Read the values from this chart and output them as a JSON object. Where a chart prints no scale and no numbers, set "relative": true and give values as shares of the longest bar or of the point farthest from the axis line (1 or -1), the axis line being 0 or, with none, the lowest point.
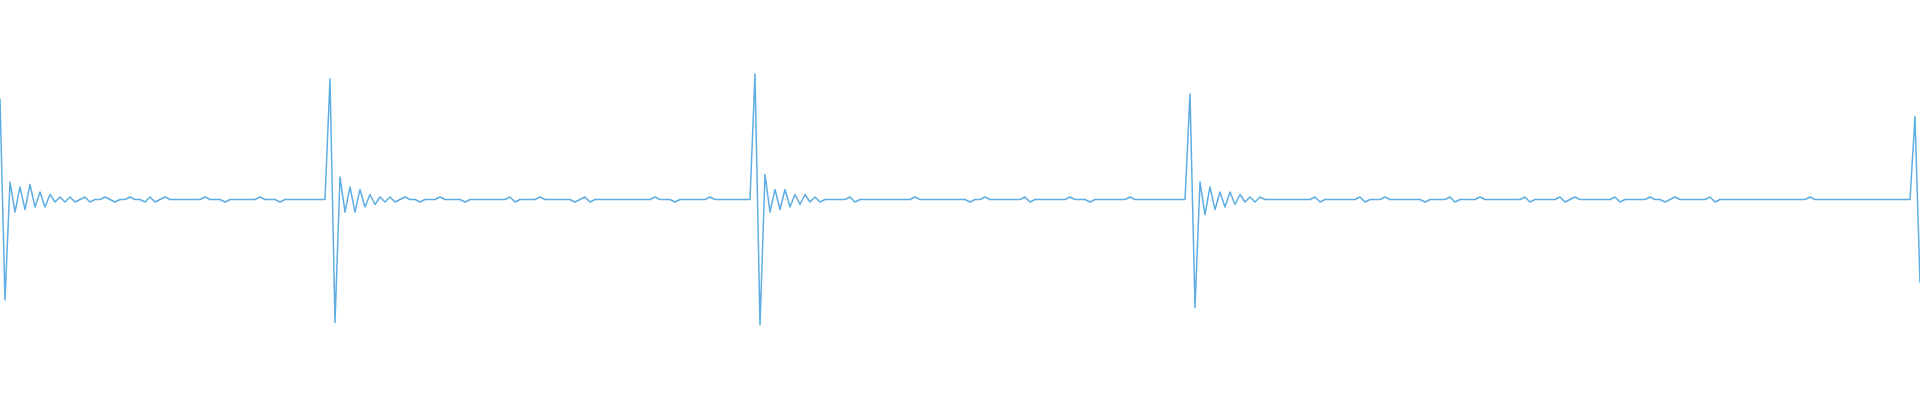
{
  "chart_data": {
    "type": "line",
    "relative": true,
    "tick_labels": false,
    "marker": "none",
    "categories": [
      null,
      null,
      null,
      null,
      null,
      null,
      null,
      null,
      null,
      null,
      null,
      null,
      null,
      null,
      null,
      null,
      null,
      null,
      null,
      null,
      null,
      null,
      null,
      null,
      null,
      null,
      null,
      null,
      null,
      null,
      null,
      null,
      null,
      null,
      null,
      null,
      null,
      null,
      null,
      null,
      null,
      null,
      null,
      null,
      null,
      null,
      null,
      null,
      null,
      null,
      null,
      null,
      null,
      null,
      null,
      null,
      null,
      null,
      null,
      null,
      null,
      null,
      null,
      null,
      null,
      null,
      null,
      null,
      null,
      null,
      null,
      null,
      null,
      null,
      null,
      null,
      null,
      null,
      null,
      null,
      null,
      null,
      null,
      null,
      null,
      null,
      null,
      null,
      null,
      null,
      null,
      null,
      null,
      null,
      null,
      null,
      null,
      null,
      null,
      null,
      null,
      null,
      null,
      null,
      null,
      null,
      null,
      null,
      null,
      null,
      null,
      null,
      null,
      null,
      null,
      null,
      null,
      null,
      null,
      null,
      null,
      null,
      null,
      null,
      null,
      null,
      null,
      null,
      null,
      null,
      null,
      null,
      null,
      null,
      null,
      null,
      null,
      null,
      null,
      null,
      null,
      null,
      null,
      null,
      null,
      null,
      null,
      null,
      null,
      null,
      null,
      null,
      null,
      null,
      null,
      null,
      null,
      null,
      null,
      null,
      null,
      null,
      null,
      null,
      null,
      null,
      null,
      null,
      null,
      null,
      null,
      null,
      null,
      null,
      null,
      null,
      null,
      null,
      null,
      null,
      null,
      null,
      null,
      null,
      null,
      null,
      null,
      null,
      null,
      null,
      null,
      null,
      null,
      null,
      null,
      null,
      null,
      null,
      null,
      null,
      null,
      null,
      null,
      null,
      null,
      null,
      null,
      null,
      null,
      null,
      null,
      null,
      null,
      null,
      null,
      null,
      null,
      null,
      null,
      null,
      null,
      null,
      null,
      null,
      null,
      null,
      null,
      null,
      null,
      null,
      null,
      null,
      null,
      null,
      null,
      null,
      null,
      null,
      null,
      null,
      null,
      null,
      null,
      null,
      null,
      null,
      null,
      null,
      null,
      null,
      null,
      null,
      null,
      null,
      null,
      null,
      null,
      null,
      null,
      null,
      null,
      null,
      null,
      null,
      null,
      null,
      null,
      null,
      null,
      null,
      null,
      null,
      null,
      null,
      null,
      null,
      null,
      null,
      null,
      null,
      null,
      null,
      null,
      null,
      null,
      null,
      null,
      null,
      null,
      null,
      null,
      null,
      null,
      null,
      null,
      null,
      null,
      null,
      null,
      null,
      null,
      null,
      null,
      null,
      null,
      null,
      null,
      null,
      null,
      null,
      null,
      null,
      null,
      null,
      null,
      null,
      null,
      null,
      null,
      null,
      null,
      null,
      null,
      null,
      null,
      null,
      null,
      null,
      null,
      null,
      null,
      null,
      null,
      null,
      null,
      null,
      null,
      null,
      null,
      null,
      null,
      null,
      null,
      null,
      null,
      null,
      null,
      null,
      null,
      null,
      null,
      null,
      null,
      null,
      null,
      null,
      null,
      null,
      null,
      null,
      null,
      null,
      null,
      null,
      null,
      null,
      null,
      null,
      null,
      null,
      null,
      null,
      null,
      null,
      null,
      null,
      null,
      null,
      null,
      null,
      null,
      null,
      null,
      null,
      null
    ],
    "series": [
      {
        "color": "#5dade2",
        "values": [
          0.9,
          0.1,
          0.57,
          0.45,
          0.55,
          0.46,
          0.56,
          0.47,
          0.53,
          0.47,
          0.52,
          0.49,
          0.51,
          0.49,
          0.51,
          0.49,
          0.5,
          0.51,
          0.49,
          0.5,
          0.5,
          0.51,
          0.5,
          0.49,
          0.5,
          0.5,
          0.51,
          0.5,
          0.5,
          0.49,
          0.51,
          0.49,
          0.5,
          0.51,
          0.5,
          0.5,
          0.5,
          0.5,
          0.5,
          0.5,
          0.5,
          0.51,
          0.5,
          0.5,
          0.5,
          0.49,
          0.5,
          0.5,
          0.5,
          0.5,
          0.5,
          0.5,
          0.51,
          0.5,
          0.5,
          0.5,
          0.49,
          0.5,
          0.5,
          0.5,
          0.5,
          0.5,
          0.5,
          0.5,
          0.5,
          0.5,
          0.98,
          0.01,
          0.59,
          0.45,
          0.55,
          0.45,
          0.54,
          0.47,
          0.52,
          0.48,
          0.51,
          0.49,
          0.51,
          0.49,
          0.5,
          0.51,
          0.5,
          0.5,
          0.49,
          0.5,
          0.5,
          0.5,
          0.51,
          0.5,
          0.5,
          0.5,
          0.5,
          0.49,
          0.5,
          0.5,
          0.5,
          0.5,
          0.5,
          0.5,
          0.5,
          0.5,
          0.51,
          0.49,
          0.5,
          0.5,
          0.5,
          0.5,
          0.51,
          0.5,
          0.5,
          0.5,
          0.5,
          0.5,
          0.5,
          0.49,
          0.5,
          0.51,
          0.49,
          0.5,
          0.5,
          0.5,
          0.5,
          0.5,
          0.5,
          0.5,
          0.5,
          0.5,
          0.5,
          0.5,
          0.5,
          0.51,
          0.5,
          0.5,
          0.5,
          0.49,
          0.5,
          0.5,
          0.5,
          0.5,
          0.5,
          0.5,
          0.51,
          0.5,
          0.5,
          0.5,
          0.5,
          0.5,
          0.5,
          0.5,
          0.5,
          1,
          0,
          0.6,
          0.45,
          0.54,
          0.46,
          0.54,
          0.47,
          0.52,
          0.48,
          0.52,
          0.49,
          0.51,
          0.49,
          0.5,
          0.5,
          0.5,
          0.5,
          0.5,
          0.51,
          0.49,
          0.5,
          0.5,
          0.5,
          0.5,
          0.5,
          0.5,
          0.5,
          0.5,
          0.5,
          0.5,
          0.5,
          0.51,
          0.5,
          0.5,
          0.5,
          0.5,
          0.5,
          0.5,
          0.5,
          0.5,
          0.5,
          0.5,
          0.49,
          0.5,
          0.5,
          0.51,
          0.5,
          0.5,
          0.5,
          0.5,
          0.5,
          0.5,
          0.5,
          0.51,
          0.49,
          0.5,
          0.5,
          0.5,
          0.5,
          0.5,
          0.5,
          0.5,
          0.51,
          0.5,
          0.5,
          0.5,
          0.49,
          0.5,
          0.5,
          0.5,
          0.5,
          0.5,
          0.5,
          0.5,
          0.51,
          0.5,
          0.5,
          0.5,
          0.5,
          0.5,
          0.5,
          0.5,
          0.5,
          0.5,
          0.5,
          0.5,
          0.92,
          0.07,
          0.57,
          0.44,
          0.55,
          0.46,
          0.53,
          0.47,
          0.53,
          0.48,
          0.52,
          0.49,
          0.51,
          0.49,
          0.51,
          0.5,
          0.5,
          0.5,
          0.5,
          0.5,
          0.5,
          0.5,
          0.5,
          0.5,
          0.5,
          0.51,
          0.49,
          0.5,
          0.5,
          0.5,
          0.5,
          0.5,
          0.5,
          0.5,
          0.51,
          0.49,
          0.5,
          0.5,
          0.5,
          0.51,
          0.5,
          0.5,
          0.5,
          0.5,
          0.5,
          0.5,
          0.5,
          0.49,
          0.5,
          0.5,
          0.5,
          0.5,
          0.51,
          0.49,
          0.5,
          0.5,
          0.5,
          0.5,
          0.51,
          0.5,
          0.5,
          0.5,
          0.5,
          0.5,
          0.5,
          0.5,
          0.5,
          0.51,
          0.49,
          0.5,
          0.5,
          0.5,
          0.5,
          0.5,
          0.51,
          0.49,
          0.5,
          0.51,
          0.5,
          0.5,
          0.5,
          0.5,
          0.5,
          0.5,
          0.5,
          0.51,
          0.49,
          0.5,
          0.5,
          0.5,
          0.5,
          0.5,
          0.51,
          0.5,
          0.5,
          0.49,
          0.5,
          0.51,
          0.5,
          0.5,
          0.5,
          0.5,
          0.5,
          0.5,
          0.51,
          0.49,
          0.5,
          0.5,
          0.5,
          0.5,
          0.5,
          0.5,
          0.5,
          0.5,
          0.5,
          0.5,
          0.5,
          0.5,
          0.5,
          0.5,
          0.5,
          0.5,
          0.5,
          0.5,
          0.51,
          0.5,
          0.5,
          0.5,
          0.5,
          0.5,
          0.5,
          0.5,
          0.5,
          0.5,
          0.5,
          0.5,
          0.5,
          0.5,
          0.5,
          0.5,
          0.5,
          0.5,
          0.5,
          0.5,
          0.5,
          0.83,
          0.17
        ]
      }
    ]
  }
}
